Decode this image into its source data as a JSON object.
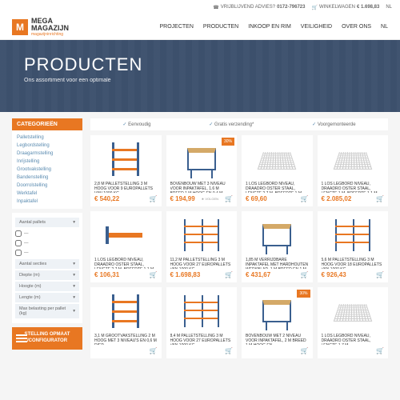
{
  "topbar": {
    "advice_label": "VRIJBLIJVEND ADVIES?",
    "phone": "0172-796723",
    "cart_label": "WINKELWAGEN",
    "cart_total": "€ 1.698,83",
    "lang": "NL"
  },
  "logo": {
    "mark": "M",
    "line1": "MEGA",
    "line2": "MAGAZIJN",
    "sub": "magazijninrichting"
  },
  "nav": [
    "PROJECTEN",
    "PRODUCTEN",
    "INKOOP EN RIM",
    "VEILIGHEID",
    "OVER ONS",
    "NL"
  ],
  "hero": {
    "title": "PRODUCTEN",
    "subtitle": "Ons assortiment voor een optimale"
  },
  "sidebar": {
    "cat_title": "CATEGORIEËN",
    "categories": [
      "Palletstelling",
      "Legbordstelling",
      "Draagarmstelling",
      "Inrijstelling",
      "Grootvakstelling",
      "Bandenstelling",
      "Doorrolstelling",
      "Werktafel",
      "Inpaktafel"
    ],
    "filter_pallets": "Aantal pallets",
    "filter_secties": "Aantal secties",
    "filters": [
      "Diepte (m)",
      "Hoogte (m)",
      "Lengte (m)",
      "Max belasting per pallet (kg)"
    ],
    "config_btn": "STELLING OPMAAT /CONFIGURATOR"
  },
  "features": [
    "Eenvoudig",
    "Gratis verzending*",
    "Voorgemonteerde"
  ],
  "products": [
    {
      "title": "2,8 M PALLETSTELLING 3 M HOOG VOOR 9 EUROPALLETS VAN 1000 KG",
      "price": "€ 540,22",
      "img": "rack",
      "badge": ""
    },
    {
      "title": "BOVENBOUW MET 3 NIVEAU VOOR INPAKTAFEL, 1.6 M BREED 1 M HOOG EN 0,4 M DIEP",
      "price": "€ 194,99",
      "img": "table",
      "badge": "30%",
      "volgen": true
    },
    {
      "title": "1 LOS LEGBORD NIVEAU, DRAADRO OSTER STAAL, LENGTE 2,7 M, BREEDTE 1 M",
      "price": "€ 69,60",
      "img": "mesh",
      "badge": ""
    },
    {
      "title": "1 LOS LEGBORD NIVEAU, DRAADRO OSTER STAAL, LENGTE 1 M, BREEDTE 1,1 M",
      "price": "€ 2.085,02",
      "img": "mesh",
      "badge": ""
    },
    {
      "title": "1 LOS LEGBORD NIVEAU, DRAADRO OSTER STAAL, LENGTE 2,7 M, BREEDTE 1,1 M",
      "price": "€ 106,31",
      "img": "beam",
      "badge": ""
    },
    {
      "title": "11,2 M PALLETSTELLING 3 M HOOG VOOR 27 EUROPALLETS VAN 1000 KG",
      "price": "€ 1.698,83",
      "img": "wide",
      "badge": ""
    },
    {
      "title": "1,85 M VERRIJDBARE INPAKTAFEL MET HARDHOUTEN WERKBLAD, 1 M BREED EN 1 M DIEP",
      "price": "€ 431,67",
      "img": "table",
      "badge": ""
    },
    {
      "title": "5,6 M PALLETSTELLING 3 M HOOG VOOR 18 EUROPALLETS VAN 1000 KG.",
      "price": "€ 926,43",
      "img": "wide",
      "badge": ""
    },
    {
      "title": "3,1 M GROOTVAKSTELLING 2 M HOOG MET 3 NIVEAU'S EN 0,6 M DIEP",
      "price": "",
      "img": "rack",
      "badge": ""
    },
    {
      "title": "8,4 M PALLETSTELLING 3 M HOOG VOOR 27 EUROPALLETS VAN 1000 KG.",
      "price": "",
      "img": "wide",
      "badge": ""
    },
    {
      "title": "BOVENBOUW MET 2 NIVEAU VOOR INPAKTAFEL, 2 M BREED 1 M HOOG EN",
      "price": "",
      "img": "table",
      "badge": "30%"
    },
    {
      "title": "1 LOS LEGBORD NIVEAU, DRAADRO OSTER STAAL, LENGTE 1,7 M",
      "price": "",
      "img": "mesh",
      "badge": ""
    }
  ],
  "colors": {
    "accent": "#e87722",
    "link": "#5a8bb0"
  }
}
